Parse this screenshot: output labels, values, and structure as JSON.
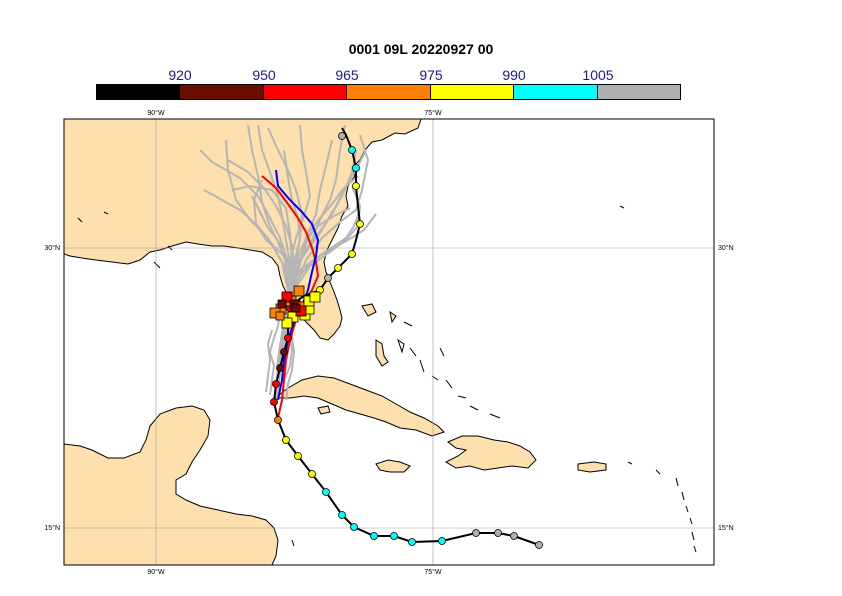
{
  "title": "0001 09L 20220927 00",
  "colorbar": {
    "colors": [
      "#000000",
      "#6b0d00",
      "#ff0000",
      "#ff8000",
      "#ffff00",
      "#00ffff",
      "#b0b0b0"
    ],
    "labels": [
      "920",
      "950",
      "965",
      "975",
      "990",
      "1005"
    ]
  },
  "axes": {
    "lon_labels": [
      "90°W",
      "75°W"
    ],
    "lat_labels": [
      "30°N",
      "15°N"
    ]
  },
  "colors": {
    "land": "#fde0ad",
    "ocean": "#ffffff",
    "ensemble_tracks": "#b5b5b5",
    "main_track": "#000000",
    "red_track": "#ff0000",
    "blue_track": "#0000ff"
  }
}
